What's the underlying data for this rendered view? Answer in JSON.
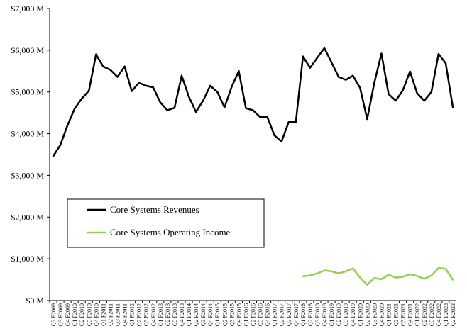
{
  "chart_data": {
    "type": "line",
    "title": "",
    "xlabel": "",
    "ylabel": "",
    "ylim": [
      0,
      7000
    ],
    "y_ticks": [
      "$0 M",
      "$1,000 M",
      "$2,000 M",
      "$3,000 M",
      "$4,000 M",
      "$5,000 M",
      "$6,000 M",
      "$7,000 M"
    ],
    "y_tick_values": [
      0,
      1000,
      2000,
      3000,
      4000,
      5000,
      6000,
      7000
    ],
    "grid": false,
    "legend_position": "lower-left",
    "categories": [
      "Q2 F2009",
      "Q3 F2009",
      "Q4 F2009",
      "Q1 F2010",
      "Q2 F2010",
      "Q3 F2010",
      "Q4 F2010",
      "Q1 F2011",
      "Q2 F2011",
      "Q3 F2011",
      "Q4 F2011",
      "Q1 F2012",
      "Q2 F2012",
      "Q3 F2012",
      "Q4 F2012",
      "Q1 F2013",
      "Q2 F2013",
      "Q3 F2013",
      "Q4 F2013",
      "Q1 F2014",
      "Q2 F2014",
      "Q3 F2014",
      "Q4 F2014",
      "Q1 F2015",
      "Q2 F2015",
      "Q3 F2015",
      "Q4 F2015",
      "Q1 F2016",
      "Q2 F2016",
      "Q3 F2016",
      "Q4 F2016",
      "Q1 F2017",
      "Q2 F2017",
      "Q3 F2017",
      "Q4 F2017",
      "Q1 F2018",
      "Q2 F2018",
      "Q3 F2018",
      "Q4 F2018",
      "Q1 F2019",
      "Q2 F2019",
      "Q3 F2019",
      "Q4 F2019",
      "Q1 F2020",
      "Q2 F2020",
      "Q3 F2020",
      "Q4 F2020",
      "Q1 F2021",
      "Q2 F2021",
      "Q3 F2021",
      "Q4 F2021",
      "Q1 F2022",
      "Q2 F2022",
      "Q3 F2022",
      "Q4 F2022",
      "Q1 F2023",
      "Q2 F2023"
    ],
    "series": [
      {
        "name": "Core Systems Revenues",
        "color": "#000000",
        "values": [
          3460,
          3730,
          4200,
          4600,
          4840,
          5030,
          5900,
          5610,
          5530,
          5360,
          5610,
          5020,
          5220,
          5150,
          5110,
          4750,
          4560,
          4620,
          5390,
          4890,
          4520,
          4790,
          5150,
          5000,
          4630,
          5120,
          5500,
          4610,
          4560,
          4400,
          4400,
          3960,
          3810,
          4280,
          4280,
          5850,
          5580,
          5820,
          6050,
          5710,
          5360,
          5290,
          5390,
          5100,
          4350,
          5220,
          5920,
          4950,
          4790,
          5040,
          5490,
          4970,
          4790,
          5000,
          5910,
          5690,
          4640
        ]
      },
      {
        "name": "Core Systems Operating Income",
        "color": "#92d050",
        "values": [
          null,
          null,
          null,
          null,
          null,
          null,
          null,
          null,
          null,
          null,
          null,
          null,
          null,
          null,
          null,
          null,
          null,
          null,
          null,
          null,
          null,
          null,
          null,
          null,
          null,
          null,
          null,
          null,
          null,
          null,
          null,
          null,
          null,
          null,
          null,
          580,
          600,
          650,
          720,
          700,
          650,
          700,
          770,
          550,
          380,
          540,
          510,
          620,
          550,
          570,
          630,
          590,
          520,
          600,
          780,
          760,
          500
        ]
      }
    ]
  }
}
